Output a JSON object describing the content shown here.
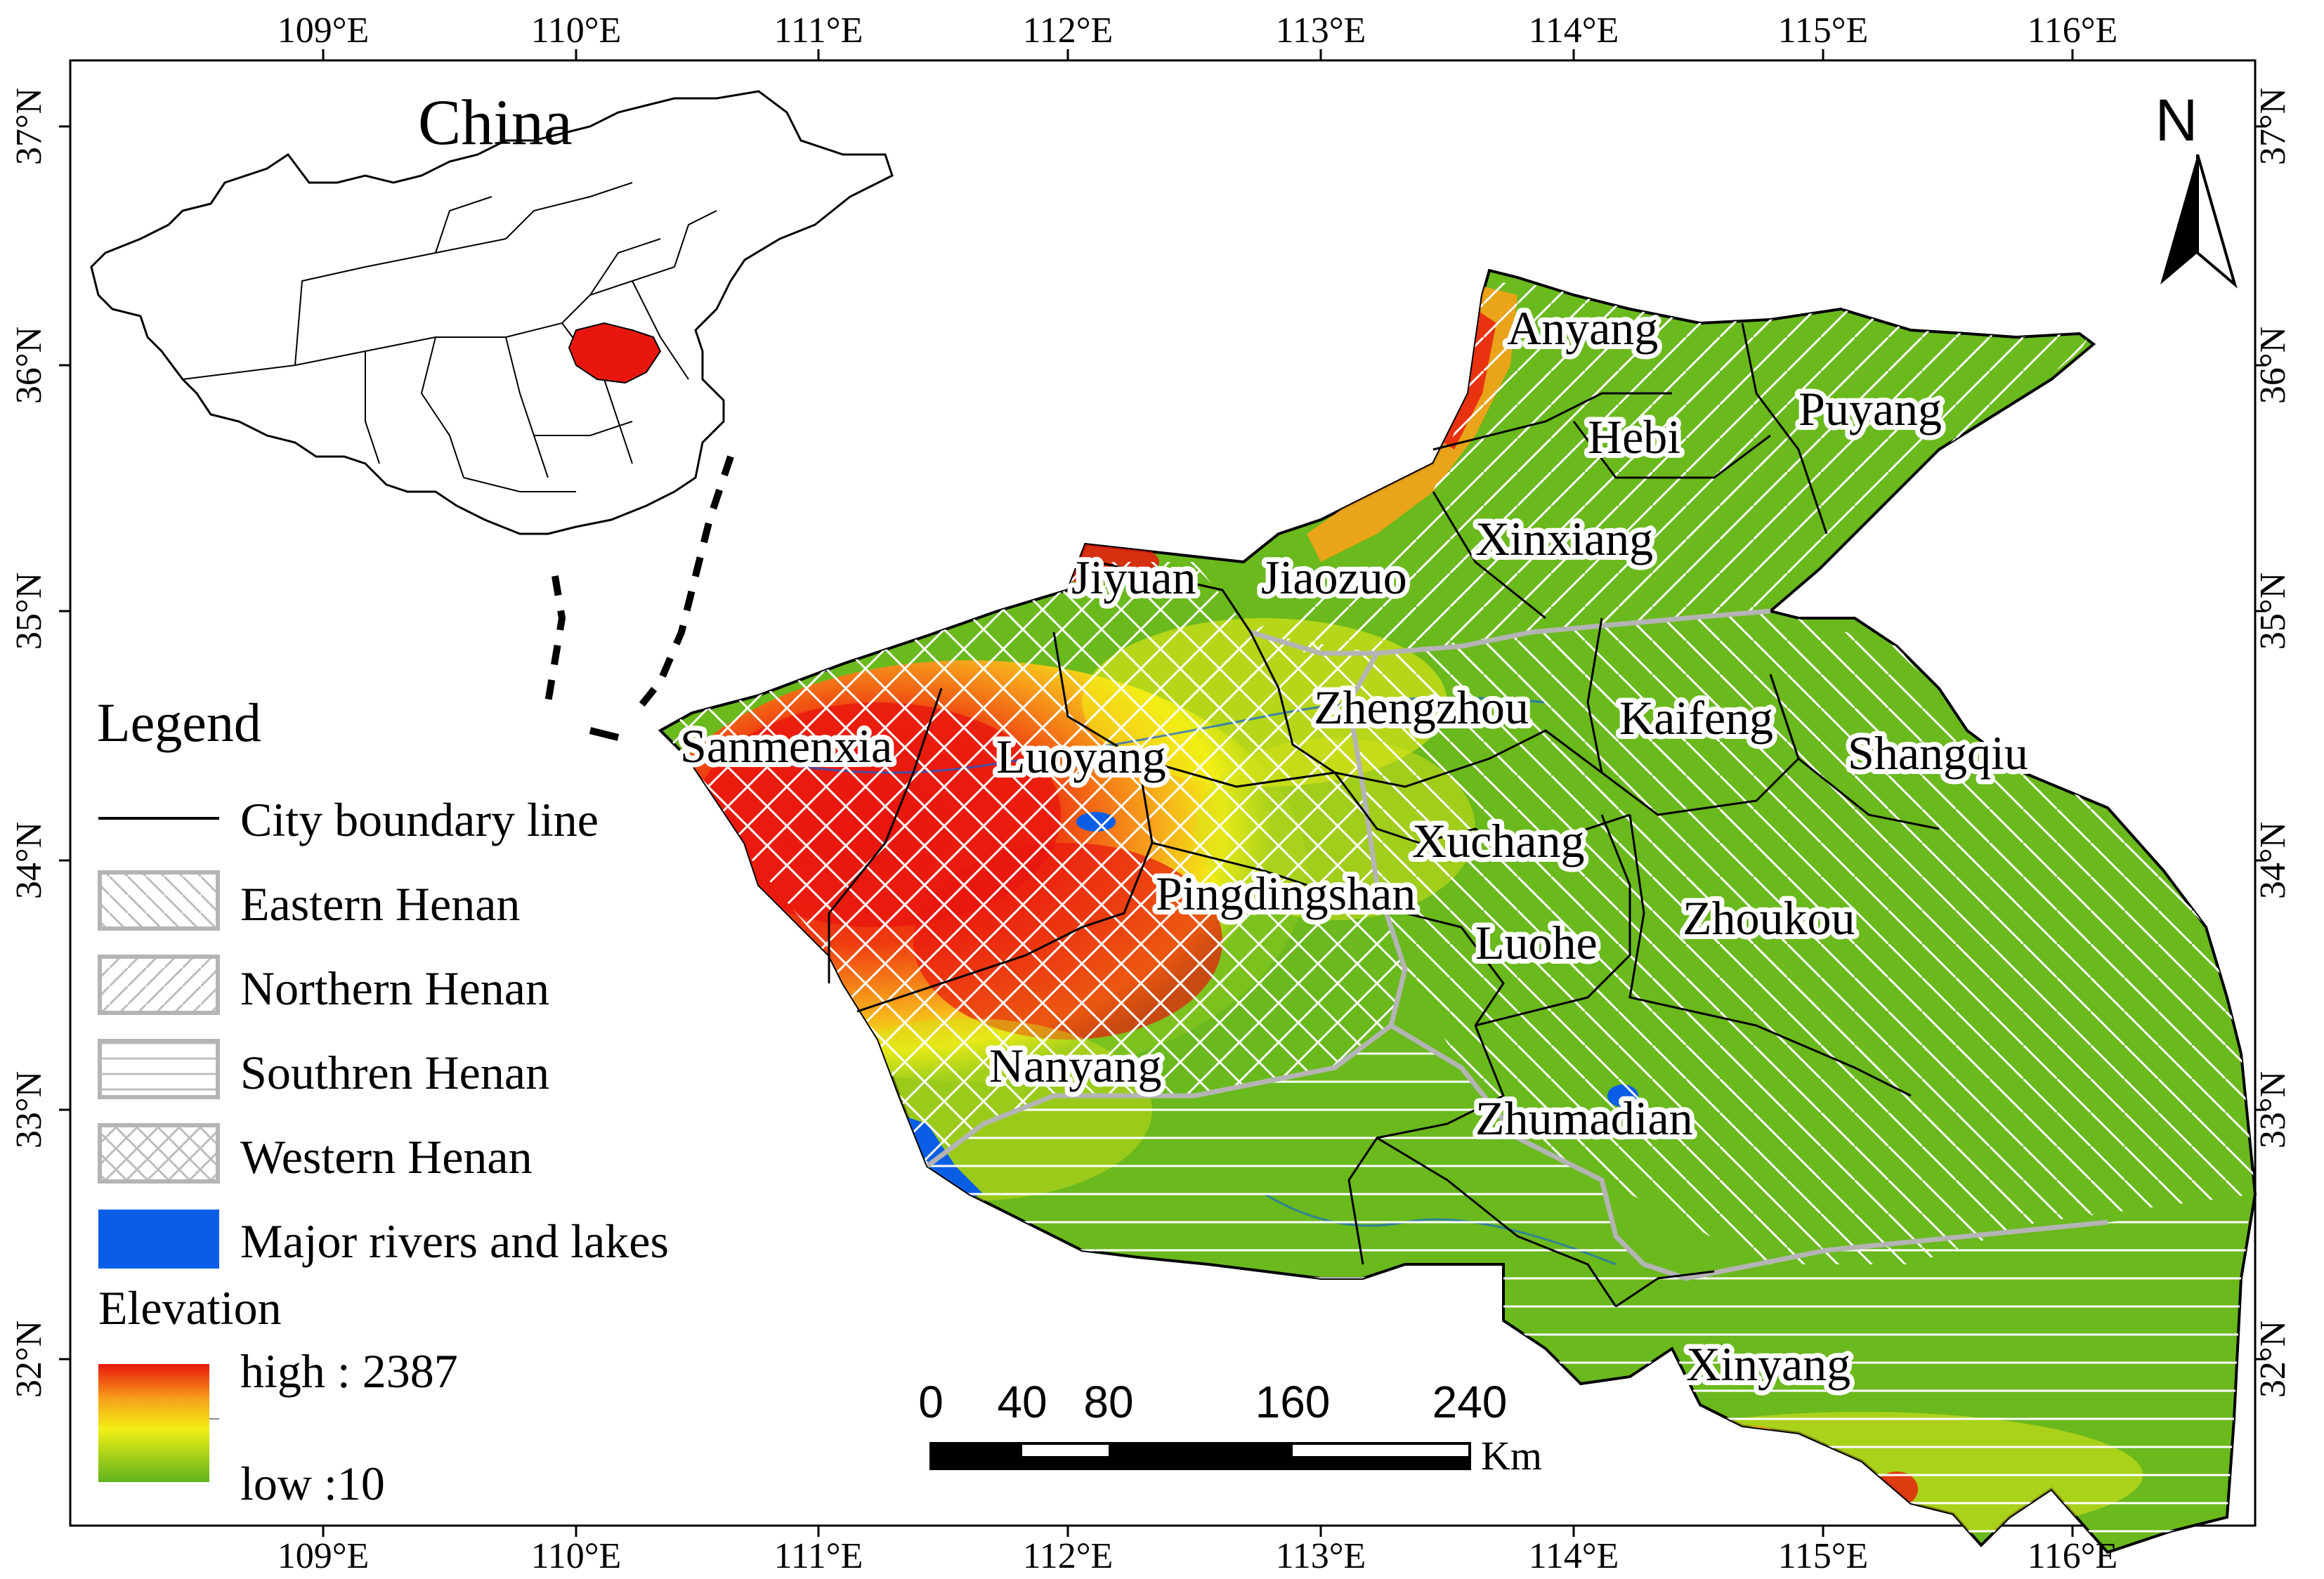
{
  "map": {
    "inset_title": "China",
    "north_label": "N",
    "lon_ticks": [
      "109°E",
      "110°E",
      "111°E",
      "112°E",
      "113°E",
      "114°E",
      "115°E",
      "116°E"
    ],
    "lat_ticks": [
      "37°N",
      "36°N",
      "35°N",
      "34°N",
      "33°N",
      "32°N"
    ],
    "cities": [
      {
        "key": "anyang",
        "label": "Anyang"
      },
      {
        "key": "hebi",
        "label": "Hebi"
      },
      {
        "key": "puyang",
        "label": "Puyang"
      },
      {
        "key": "xinxiang",
        "label": "Xinxiang"
      },
      {
        "key": "jiyuan",
        "label": "Jiyuan"
      },
      {
        "key": "jiaozuo",
        "label": "Jiaozuo"
      },
      {
        "key": "zhengzhou",
        "label": "Zhengzhou"
      },
      {
        "key": "kaifeng",
        "label": "Kaifeng"
      },
      {
        "key": "shangqiu",
        "label": "Shangqiu"
      },
      {
        "key": "sanmenxia",
        "label": "Sanmenxia"
      },
      {
        "key": "luoyang",
        "label": "Luoyang"
      },
      {
        "key": "xuchang",
        "label": "Xuchang"
      },
      {
        "key": "pingdingshan",
        "label": "Pingdingshan"
      },
      {
        "key": "luohe",
        "label": "Luohe"
      },
      {
        "key": "zhoukou",
        "label": "Zhoukou"
      },
      {
        "key": "nanyang",
        "label": "Nanyang"
      },
      {
        "key": "zhumadian",
        "label": "Zhumadian"
      },
      {
        "key": "xinyang",
        "label": "Xinyang"
      }
    ],
    "legend": {
      "title": "Legend",
      "items": [
        {
          "key": "city_boundary",
          "label": "City boundary line"
        },
        {
          "key": "eastern",
          "label": "Eastern Henan"
        },
        {
          "key": "northern",
          "label": "Northern Henan"
        },
        {
          "key": "southern",
          "label": "Southren Henan"
        },
        {
          "key": "western",
          "label": "Western Henan"
        },
        {
          "key": "rivers",
          "label": "Major rivers and lakes"
        }
      ],
      "elevation_title": "Elevation",
      "elevation_high": "high : 2387",
      "elevation_low": "low :10"
    },
    "scale_bar": {
      "labels": [
        "0",
        "40",
        "80",
        "160",
        "240"
      ],
      "unit": "Km"
    },
    "colors": {
      "elevation_high": "#e8170e",
      "elevation_mid_high": "#f7a21b",
      "elevation_mid": "#f2ef15",
      "elevation_low": "#5fb31c",
      "water": "#0a5ee6",
      "highlight_henan": "#e8170e",
      "region_boundary": "#b4b4b4"
    }
  }
}
